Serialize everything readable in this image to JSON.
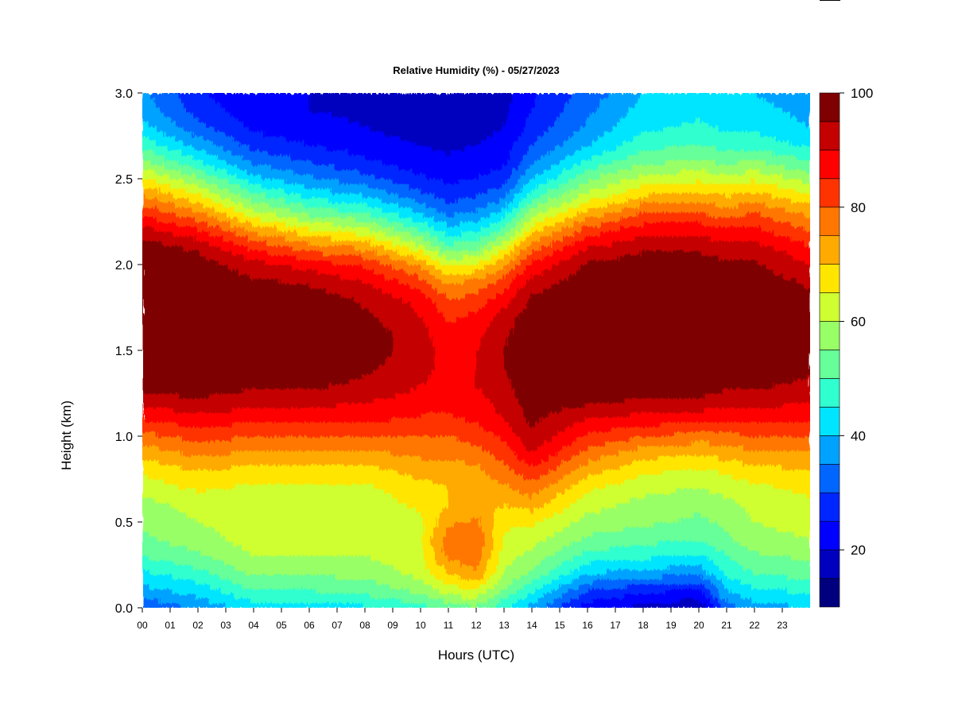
{
  "chart_data": {
    "type": "heatmap",
    "title": "Relative Humidity (%) - 05/27/2023",
    "xlabel": "Hours (UTC)",
    "ylabel": "Height (km)",
    "xlim": [
      0,
      24
    ],
    "ylim": [
      0.0,
      3.0
    ],
    "x_ticks": [
      {
        "value": 0,
        "label": "00"
      },
      {
        "value": 1,
        "label": "01"
      },
      {
        "value": 2,
        "label": "02"
      },
      {
        "value": 3,
        "label": "03"
      },
      {
        "value": 4,
        "label": "04"
      },
      {
        "value": 5,
        "label": "05"
      },
      {
        "value": 6,
        "label": "06"
      },
      {
        "value": 7,
        "label": "07"
      },
      {
        "value": 8,
        "label": "08"
      },
      {
        "value": 9,
        "label": "09"
      },
      {
        "value": 10,
        "label": "10"
      },
      {
        "value": 11,
        "label": "11"
      },
      {
        "value": 12,
        "label": "12"
      },
      {
        "value": 13,
        "label": "13"
      },
      {
        "value": 14,
        "label": "14"
      },
      {
        "value": 15,
        "label": "15"
      },
      {
        "value": 16,
        "label": "16"
      },
      {
        "value": 17,
        "label": "17"
      },
      {
        "value": 18,
        "label": "18"
      },
      {
        "value": 19,
        "label": "19"
      },
      {
        "value": 20,
        "label": "20"
      },
      {
        "value": 21,
        "label": "21"
      },
      {
        "value": 22,
        "label": "22"
      },
      {
        "value": 23,
        "label": "23"
      }
    ],
    "y_ticks": [
      {
        "value": 0.0,
        "label": "0.0"
      },
      {
        "value": 0.5,
        "label": "0.5"
      },
      {
        "value": 1.0,
        "label": "1.0"
      },
      {
        "value": 1.5,
        "label": "1.5"
      },
      {
        "value": 2.0,
        "label": "2.0"
      },
      {
        "value": 2.5,
        "label": "2.5"
      },
      {
        "value": 3.0,
        "label": "3.0"
      }
    ],
    "colorbar": {
      "range": [
        10,
        100
      ],
      "levels": [
        10,
        15,
        20,
        25,
        30,
        35,
        40,
        45,
        50,
        55,
        60,
        65,
        70,
        75,
        80,
        85,
        90,
        95,
        100
      ],
      "colors": [
        "#00007F",
        "#0000BF",
        "#0000FF",
        "#0026FF",
        "#0066FF",
        "#00A2FF",
        "#00E5FF",
        "#30FFCF",
        "#66FF99",
        "#99FF66",
        "#CFFF30",
        "#FFE500",
        "#FFAA00",
        "#FF7700",
        "#FF3300",
        "#FF0000",
        "#C40000",
        "#7F0000"
      ],
      "tick_values": [
        20,
        40,
        60,
        80,
        100
      ],
      "tick_labels": [
        "20",
        "40",
        "60",
        "80",
        "100"
      ]
    },
    "heights_km": [
      0.0,
      0.1,
      0.2,
      0.3,
      0.4,
      0.5,
      0.6,
      0.7,
      0.8,
      0.9,
      1.0,
      1.1,
      1.2,
      1.3,
      1.4,
      1.5,
      1.6,
      1.7,
      1.8,
      1.9,
      2.0,
      2.1,
      2.2,
      2.3,
      2.4,
      2.5,
      2.6,
      2.7,
      2.8,
      2.9,
      3.0
    ],
    "hours_utc": [
      0,
      2,
      4,
      6,
      8,
      10,
      11,
      12,
      13,
      14,
      16,
      18,
      20,
      21,
      22,
      24
    ],
    "rh_profiles": [
      [
        30,
        38,
        44,
        50,
        54,
        56,
        58,
        62,
        66,
        72,
        78,
        85,
        92,
        98,
        100,
        100,
        100,
        100,
        100,
        100,
        100,
        98,
        92,
        84,
        76,
        66,
        56,
        48,
        42,
        38,
        36
      ],
      [
        36,
        42,
        48,
        54,
        58,
        60,
        62,
        66,
        70,
        76,
        82,
        88,
        94,
        98,
        100,
        100,
        100,
        100,
        100,
        100,
        98,
        94,
        86,
        76,
        66,
        56,
        46,
        38,
        32,
        28,
        26
      ],
      [
        42,
        50,
        56,
        60,
        62,
        62,
        62,
        64,
        68,
        74,
        80,
        86,
        92,
        96,
        98,
        99,
        100,
        100,
        98,
        96,
        92,
        84,
        74,
        62,
        52,
        42,
        34,
        28,
        24,
        22,
        20
      ],
      [
        42,
        50,
        56,
        60,
        62,
        62,
        62,
        64,
        68,
        74,
        80,
        86,
        92,
        96,
        98,
        99,
        100,
        100,
        98,
        94,
        88,
        78,
        66,
        54,
        44,
        36,
        30,
        25,
        22,
        20,
        20
      ],
      [
        44,
        52,
        56,
        60,
        60,
        60,
        62,
        64,
        68,
        74,
        80,
        86,
        90,
        94,
        96,
        98,
        98,
        96,
        94,
        90,
        84,
        74,
        62,
        50,
        40,
        32,
        26,
        22,
        20,
        19,
        18
      ],
      [
        48,
        56,
        62,
        64,
        64,
        64,
        66,
        68,
        72,
        76,
        80,
        84,
        88,
        90,
        92,
        92,
        92,
        90,
        88,
        82,
        74,
        62,
        50,
        40,
        32,
        26,
        22,
        20,
        18,
        17,
        16
      ],
      [
        52,
        62,
        70,
        76,
        78,
        74,
        70,
        70,
        72,
        76,
        80,
        84,
        86,
        88,
        88,
        88,
        86,
        84,
        80,
        74,
        64,
        52,
        42,
        34,
        28,
        24,
        21,
        19,
        17,
        16,
        15
      ],
      [
        54,
        64,
        74,
        78,
        80,
        76,
        72,
        72,
        74,
        78,
        82,
        86,
        88,
        90,
        90,
        90,
        88,
        86,
        82,
        76,
        66,
        54,
        44,
        36,
        30,
        25,
        22,
        20,
        18,
        17,
        16
      ],
      [
        46,
        54,
        60,
        62,
        64,
        66,
        70,
        74,
        78,
        82,
        86,
        90,
        92,
        94,
        95,
        95,
        94,
        92,
        88,
        82,
        74,
        64,
        52,
        42,
        34,
        28,
        24,
        22,
        20,
        19,
        18
      ],
      [
        38,
        46,
        54,
        58,
        62,
        66,
        72,
        78,
        84,
        90,
        94,
        96,
        98,
        98,
        99,
        99,
        99,
        98,
        96,
        92,
        86,
        78,
        68,
        58,
        48,
        40,
        34,
        30,
        27,
        25,
        24
      ],
      [
        22,
        30,
        40,
        48,
        54,
        58,
        62,
        66,
        72,
        78,
        84,
        90,
        96,
        98,
        100,
        100,
        100,
        100,
        100,
        98,
        96,
        90,
        82,
        72,
        62,
        54,
        46,
        40,
        36,
        34,
        32
      ],
      [
        18,
        26,
        38,
        46,
        52,
        56,
        58,
        62,
        66,
        72,
        80,
        88,
        94,
        98,
        100,
        100,
        100,
        100,
        100,
        100,
        98,
        94,
        88,
        80,
        70,
        62,
        54,
        48,
        44,
        42,
        40
      ],
      [
        16,
        24,
        36,
        44,
        50,
        54,
        56,
        60,
        64,
        70,
        78,
        86,
        94,
        98,
        100,
        100,
        100,
        100,
        100,
        100,
        98,
        94,
        88,
        80,
        72,
        64,
        56,
        50,
        46,
        44,
        42
      ],
      [
        32,
        40,
        46,
        50,
        54,
        56,
        58,
        62,
        66,
        72,
        78,
        86,
        92,
        96,
        100,
        100,
        100,
        100,
        100,
        98,
        96,
        92,
        86,
        78,
        70,
        62,
        54,
        48,
        44,
        42,
        40
      ],
      [
        38,
        44,
        50,
        54,
        58,
        60,
        62,
        64,
        68,
        74,
        80,
        86,
        92,
        96,
        98,
        100,
        100,
        100,
        100,
        98,
        96,
        92,
        86,
        80,
        72,
        64,
        56,
        48,
        44,
        42,
        40
      ],
      [
        40,
        46,
        52,
        56,
        60,
        62,
        64,
        66,
        70,
        74,
        80,
        86,
        90,
        94,
        96,
        98,
        98,
        98,
        96,
        94,
        90,
        86,
        80,
        74,
        66,
        58,
        50,
        44,
        40,
        38,
        36
      ]
    ]
  }
}
